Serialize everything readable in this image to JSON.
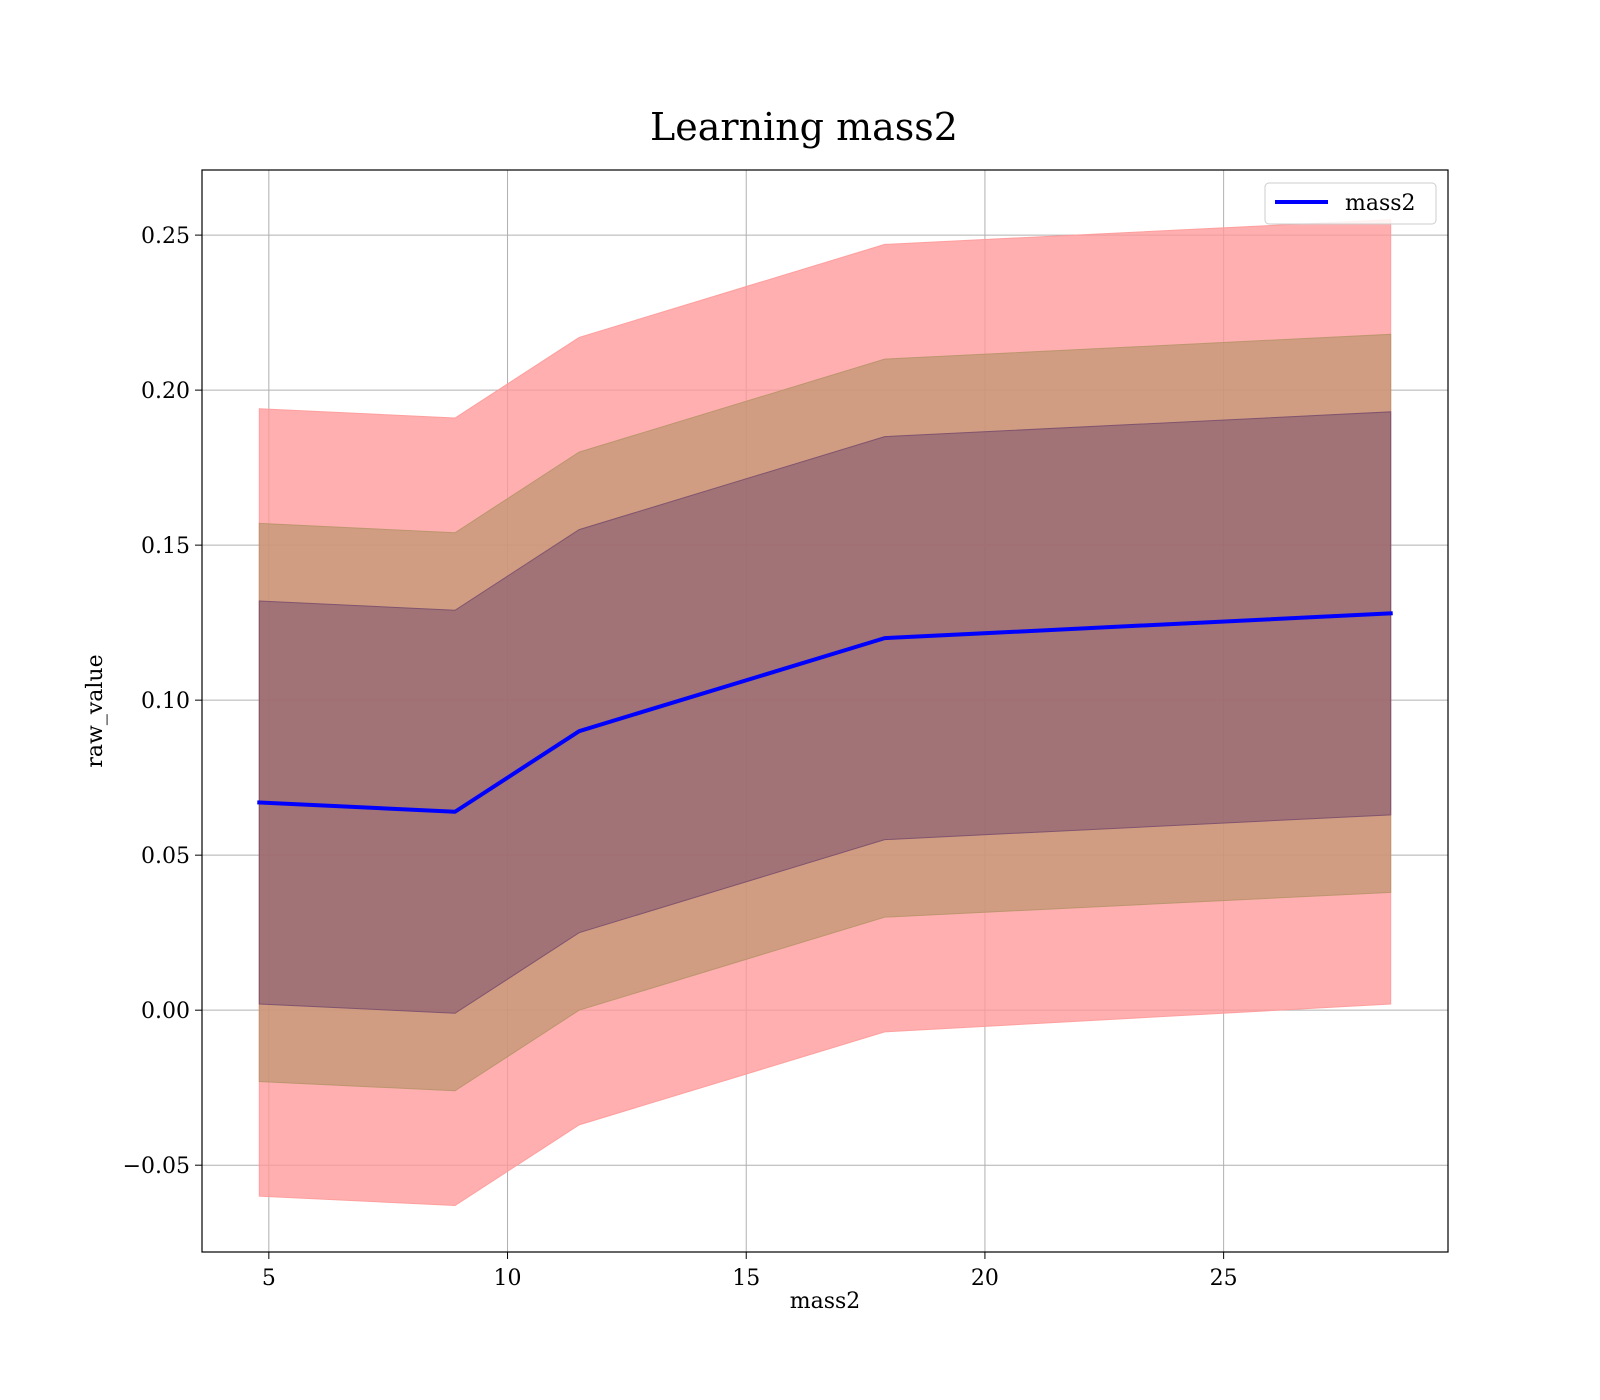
{
  "chart_data": {
    "type": "area",
    "title": "Learning mass2",
    "xlabel": "mass2",
    "ylabel": "raw_value",
    "xlim": [
      3.6,
      29.7
    ],
    "ylim": [
      -0.078,
      0.271
    ],
    "xticks": [
      5,
      10,
      15,
      20,
      25
    ],
    "xtick_labels": [
      "5",
      "10",
      "15",
      "20",
      "25"
    ],
    "yticks": [
      -0.05,
      0.0,
      0.05,
      0.1,
      0.15,
      0.2,
      0.25
    ],
    "ytick_labels": [
      "−0.05",
      "0.00",
      "0.05",
      "0.10",
      "0.15",
      "0.20",
      "0.25"
    ],
    "grid": true,
    "legend_position": "upper-right",
    "x": [
      4.8,
      8.9,
      11.5,
      17.9,
      28.5
    ],
    "series": [
      {
        "name": "mass2",
        "kind": "line",
        "color": "#0000ff",
        "values": [
          0.067,
          0.064,
          0.09,
          0.12,
          0.128
        ]
      }
    ],
    "bands": [
      {
        "level": "outer",
        "color": "#ff9999",
        "opacity": 0.78,
        "upper": [
          0.194,
          0.191,
          0.217,
          0.247,
          0.255
        ],
        "lower": [
          -0.06,
          -0.063,
          -0.037,
          -0.007,
          0.002
        ]
      },
      {
        "level": "middle",
        "color": "#b8936a",
        "opacity": 0.65,
        "upper": [
          0.157,
          0.154,
          0.18,
          0.21,
          0.218
        ],
        "lower": [
          -0.023,
          -0.026,
          0.0,
          0.03,
          0.038
        ]
      },
      {
        "level": "inner",
        "color": "#7a4f6d",
        "opacity": 0.55,
        "upper": [
          0.132,
          0.129,
          0.155,
          0.185,
          0.193
        ],
        "lower": [
          0.002,
          -0.001,
          0.025,
          0.055,
          0.063
        ]
      }
    ]
  }
}
